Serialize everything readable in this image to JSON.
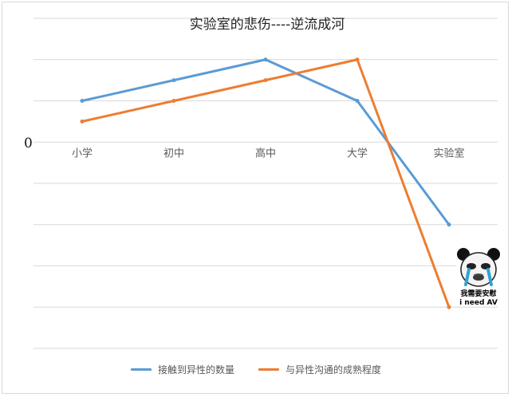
{
  "chart_data": {
    "type": "line",
    "title": "实验室的悲伤----逆流成河",
    "categories": [
      "小学",
      "初中",
      "高中",
      "大学",
      "实验室"
    ],
    "y_zero_label": "0",
    "ylim": [
      -5,
      3
    ],
    "grid": true,
    "legend_position": "bottom",
    "series": [
      {
        "name": "接触到异性的数量",
        "color": "#5b9bd5",
        "values": [
          1,
          1.5,
          2,
          1,
          -2
        ]
      },
      {
        "name": "与异性沟通的成熟程度",
        "color": "#ed7d31",
        "values": [
          0.5,
          1,
          1.5,
          2,
          -4
        ]
      }
    ]
  },
  "meme": {
    "icon": "crying-panda-meme-icon",
    "caption_line1": "我需要安慰",
    "caption_line2": "i need AV"
  }
}
